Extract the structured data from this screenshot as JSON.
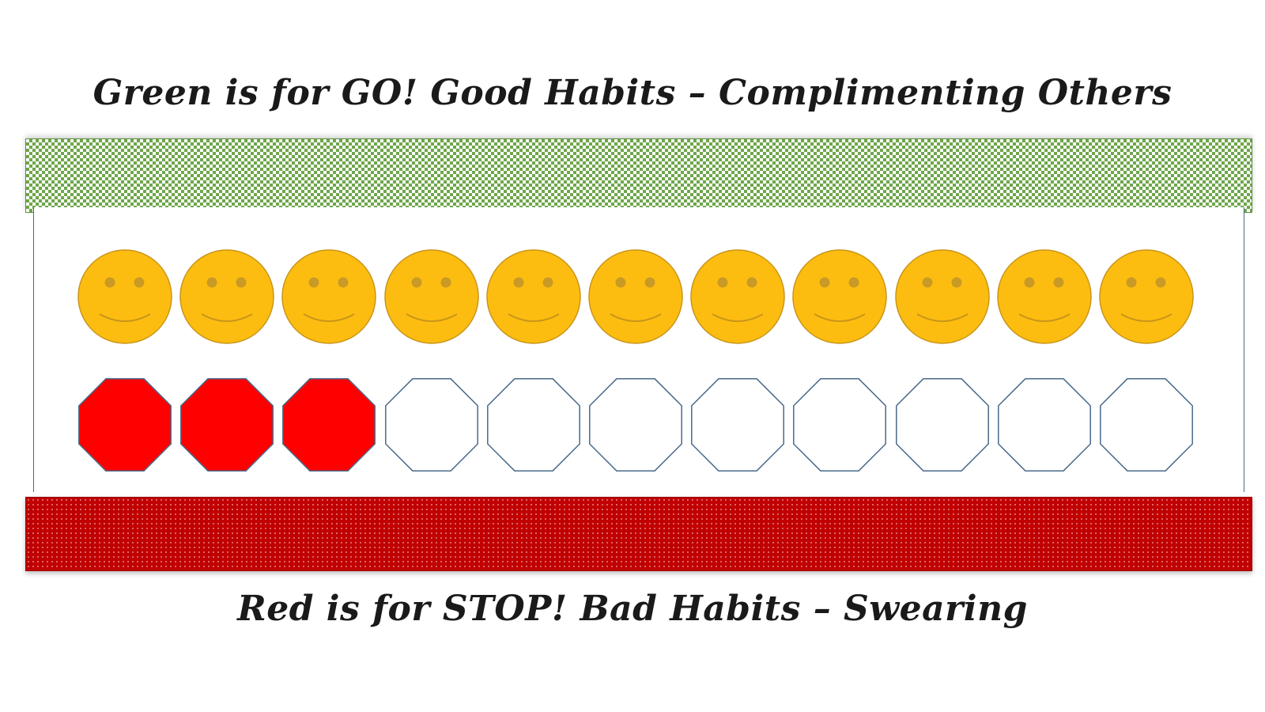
{
  "good_title": "Green is for GO! Good Habits – Complimenting Others",
  "bad_title": "Red is for STOP! Bad Habits – Swearing",
  "colors": {
    "green_stripe": "#6ea64a",
    "red_stripe": "#c00000",
    "smiley_fill": "#fdbd10",
    "stop_fill": "#ff0000",
    "outline": "#4a6a8a"
  },
  "smileys": {
    "icon": "smiley-face-icon",
    "count": 11
  },
  "stop_signs": {
    "icon": "octagon-stop-icon",
    "total": 11,
    "filled": 3
  }
}
